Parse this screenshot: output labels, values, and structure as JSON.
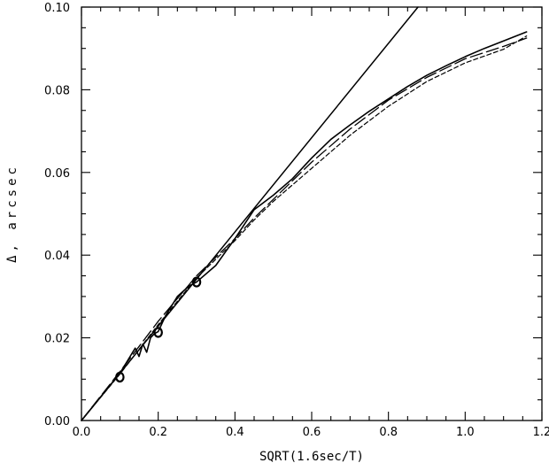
{
  "chart_data": {
    "type": "line",
    "title": "",
    "xlabel": "SQRT(1.6sec/T)",
    "ylabel": "Δ, arcsec",
    "xlim": [
      0.0,
      1.2
    ],
    "ylim": [
      0.0,
      0.1
    ],
    "x_ticks": [
      0.0,
      0.2,
      0.4,
      0.6,
      0.8,
      1.0,
      1.2
    ],
    "x_tick_labels": [
      "0.0",
      "0.2",
      "0.4",
      "0.6",
      "0.8",
      "1.0",
      "1.2"
    ],
    "y_ticks": [
      0.0,
      0.02,
      0.04,
      0.06,
      0.08,
      0.1
    ],
    "y_tick_labels": [
      "0.00",
      "0.02",
      "0.04",
      "0.06",
      "0.08",
      "0.10"
    ],
    "grid": false,
    "legend": "none",
    "series": [
      {
        "style": "solid-straight",
        "x": [
          0.0,
          0.877
        ],
        "y": [
          0.0,
          0.1
        ]
      },
      {
        "style": "solid",
        "x": [
          0.0,
          0.05,
          0.1,
          0.14,
          0.15,
          0.16,
          0.17,
          0.18,
          0.19,
          0.2,
          0.22,
          0.25,
          0.28,
          0.3,
          0.35,
          0.4,
          0.45,
          0.5,
          0.55,
          0.6,
          0.65,
          0.7,
          0.75,
          0.8,
          0.85,
          0.9,
          0.95,
          1.0,
          1.05,
          1.1,
          1.16
        ],
        "y": [
          0.0,
          0.0057,
          0.0114,
          0.0175,
          0.0155,
          0.0185,
          0.0165,
          0.02,
          0.021,
          0.0215,
          0.0255,
          0.03,
          0.0325,
          0.0335,
          0.0375,
          0.044,
          0.051,
          0.0545,
          0.0585,
          0.0635,
          0.068,
          0.0715,
          0.0748,
          0.0778,
          0.0808,
          0.0835,
          0.0858,
          0.088,
          0.09,
          0.0918,
          0.094
        ]
      },
      {
        "style": "long-dash",
        "x": [
          0.0,
          0.1,
          0.2,
          0.3,
          0.4,
          0.45,
          0.5,
          0.55,
          0.6,
          0.7,
          0.8,
          0.9,
          1.0,
          1.1,
          1.16
        ],
        "y": [
          0.0,
          0.0118,
          0.024,
          0.035,
          0.044,
          0.049,
          0.0535,
          0.058,
          0.0625,
          0.0705,
          0.0775,
          0.083,
          0.0875,
          0.0905,
          0.0925
        ]
      },
      {
        "style": "short-dash",
        "x": [
          0.0,
          0.1,
          0.2,
          0.3,
          0.4,
          0.45,
          0.5,
          0.55,
          0.6,
          0.7,
          0.8,
          0.9,
          1.0,
          1.1,
          1.16
        ],
        "y": [
          0.0,
          0.0112,
          0.0232,
          0.0345,
          0.0435,
          0.0485,
          0.053,
          0.057,
          0.061,
          0.069,
          0.076,
          0.082,
          0.0865,
          0.0898,
          0.093
        ]
      }
    ],
    "markers": {
      "shape": "circle",
      "x": [
        0.1,
        0.2,
        0.3
      ],
      "y": [
        0.0105,
        0.0213,
        0.0335
      ]
    }
  }
}
